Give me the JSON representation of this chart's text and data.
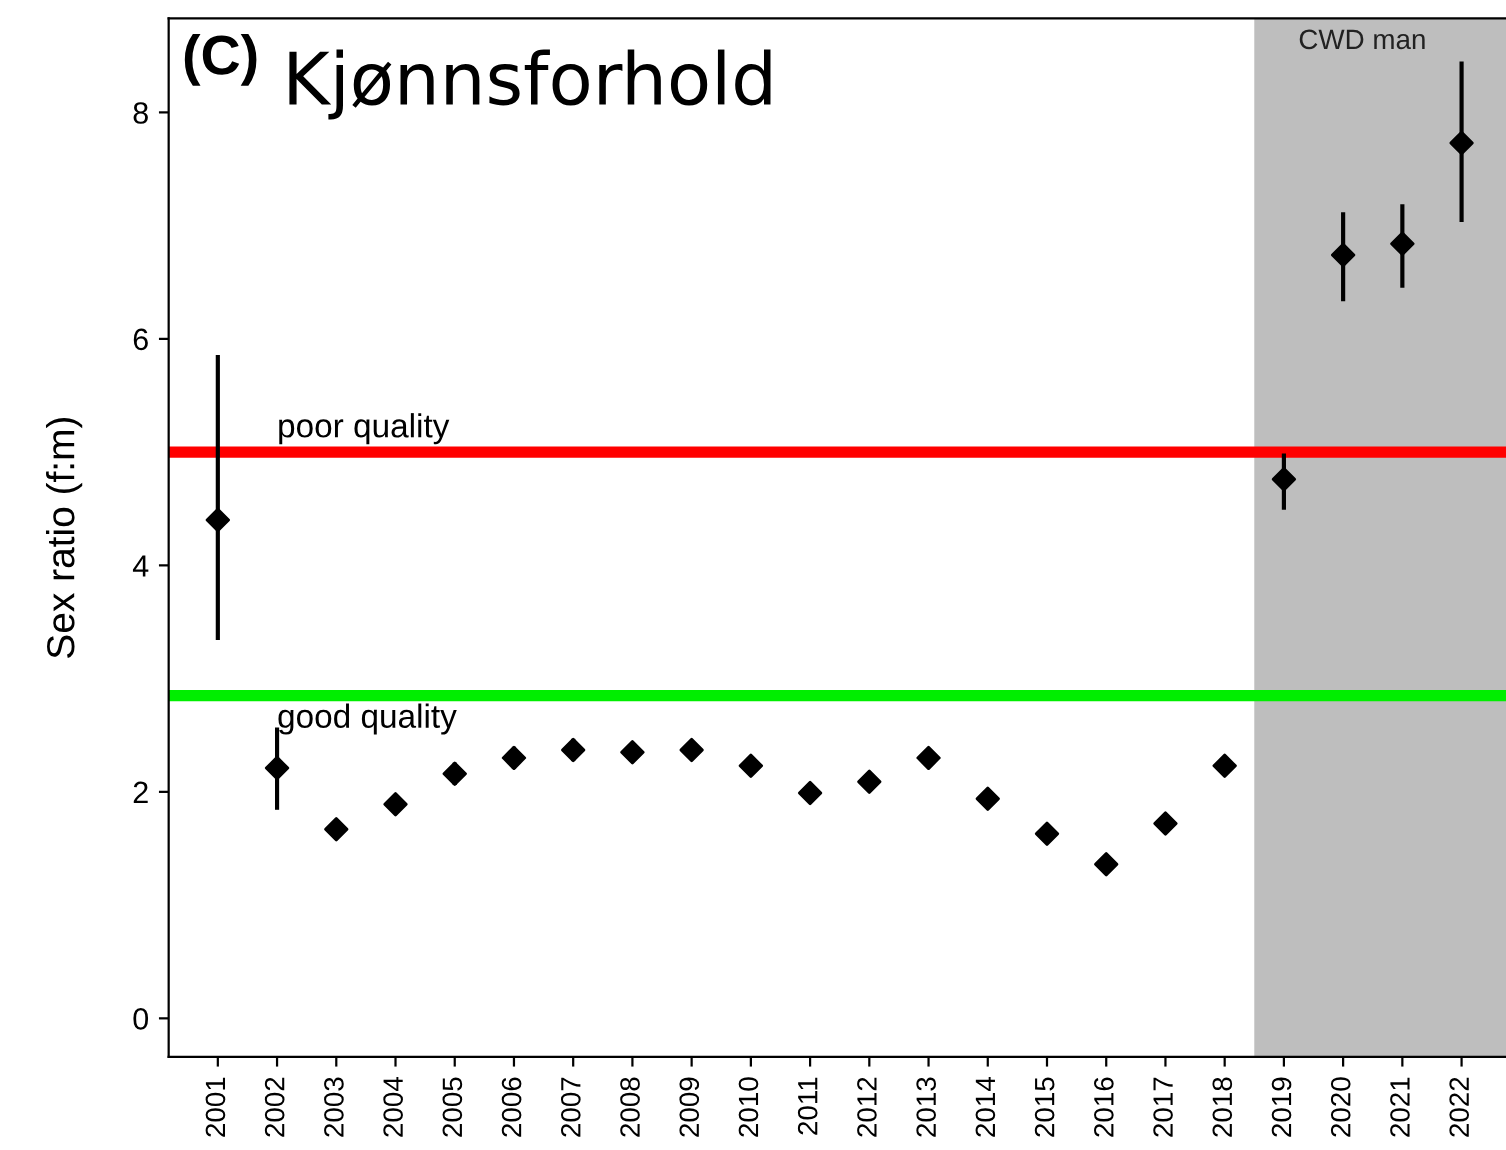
{
  "chart_data": {
    "type": "scatter",
    "title": "Kjønnsforhold",
    "ylabel": "Sex ratio (f:m)",
    "annotations": [
      "(C)"
    ],
    "x": [
      2001,
      2002,
      2003,
      2004,
      2005,
      2006,
      2007,
      2008,
      2009,
      2010,
      2011,
      2012,
      2013,
      2014,
      2015,
      2016,
      2017,
      2018,
      2019,
      2020,
      2021,
      2022
    ],
    "series": [
      {
        "color": "#000000",
        "values": [
          4.4,
          2.21,
          1.67,
          1.89,
          2.16,
          2.3,
          2.37,
          2.35,
          2.37,
          2.23,
          1.99,
          2.09,
          2.3,
          1.94,
          1.63,
          1.36,
          1.72,
          2.23,
          4.76,
          6.74,
          6.84,
          7.73
        ],
        "errors": [
          [
            3.36,
            5.84
          ],
          [
            1.86,
            2.55
          ],
          [
            1.6,
            1.74
          ],
          [
            1.82,
            1.96
          ],
          [
            2.08,
            2.24
          ],
          [
            2.22,
            2.38
          ],
          [
            2.29,
            2.45
          ],
          [
            2.3,
            2.4
          ],
          [
            2.31,
            2.43
          ],
          [
            2.17,
            2.29
          ],
          [
            1.95,
            2.03
          ],
          [
            2.05,
            2.13
          ],
          [
            2.25,
            2.35
          ],
          [
            1.89,
            1.99
          ],
          [
            1.6,
            1.66
          ],
          [
            1.33,
            1.39
          ],
          [
            1.67,
            1.77
          ],
          [
            2.18,
            2.28
          ],
          [
            4.51,
            4.97
          ],
          [
            6.35,
            7.1
          ],
          [
            6.47,
            7.17
          ],
          [
            7.05,
            8.43
          ]
        ]
      }
    ],
    "xlim": [
      2000.17,
      2022.75
    ],
    "xticks": [
      2001,
      2002,
      2003,
      2004,
      2005,
      2006,
      2007,
      2008,
      2009,
      2010,
      2011,
      2012,
      2013,
      2014,
      2015,
      2016,
      2017,
      2018,
      2019,
      2020,
      2021,
      2022
    ],
    "ylim": [
      -0.34,
      8.83
    ],
    "yticks": [
      0,
      2,
      4,
      6,
      8
    ],
    "ref_lines": [
      {
        "axis": "y",
        "value": 5,
        "label": "poor quality",
        "color": "#ff0000"
      },
      {
        "axis": "y",
        "value": 2.85,
        "label": "good quality",
        "color": "#00ee00"
      }
    ],
    "bands": [
      {
        "axis": "x",
        "from": 2018.5,
        "to": 2022.75,
        "label": "CWD man",
        "color": "#bebebe"
      }
    ],
    "marker": "diamond",
    "grid": false,
    "legend": false
  }
}
